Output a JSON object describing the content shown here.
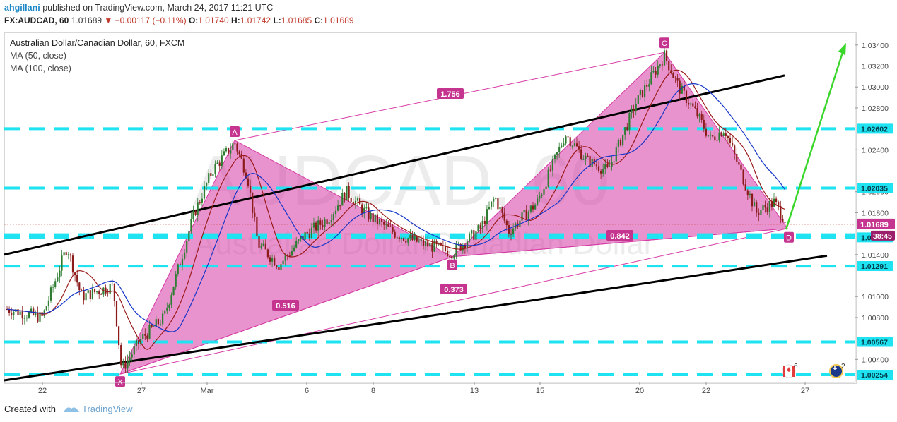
{
  "header": {
    "author": "ahgillani",
    "published_text": "published on TradingView.com, March 24, 2017 11:21 UTC"
  },
  "ohlc": {
    "symbol": "FX:AUDCAD, 60",
    "last": "1.01689",
    "change": "▼ −0.00117 (−0.11%)",
    "open": "1.01740",
    "high": "1.01742",
    "low": "1.01685",
    "close": "1.01689"
  },
  "legend": {
    "title": "Australian Dollar/Canadian Dollar, 60, FXCM",
    "ma50": "MA (50, close)",
    "ma100": "MA (100, close)"
  },
  "watermark": {
    "line1": "AUDCAD, 60",
    "line2": "Australian Dollar/Canadian Dollar"
  },
  "footer": {
    "created_with": "Created with",
    "brand": "TradingView"
  },
  "colors": {
    "pattern_fill": "#d63aa4",
    "pattern_label": "#c5358f",
    "hline": "#1fe3f0",
    "trendline": "#000000",
    "arrow": "#3bd62b",
    "ma50": "#9b1b1b",
    "ma100": "#1636c8",
    "candle_up": "#2e7d32",
    "candle_down": "#8b1a1a",
    "price_tag": "#c5358f",
    "timer_tag": "#9b1f6a"
  },
  "chart_data": {
    "type": "candlestick",
    "title": "Australian Dollar/Canadian Dollar, 60, FXCM",
    "price_axis": {
      "ylim": [
        1.0018,
        1.0352
      ],
      "ticks": [
        "1.00400",
        "1.00800",
        "1.01000",
        "1.01400",
        "1.01800",
        "1.02000",
        "1.02400",
        "1.02800",
        "1.03000",
        "1.03200",
        "1.03400"
      ]
    },
    "time_axis": {
      "labels": [
        "22",
        "27",
        "Mar",
        "6",
        "8",
        "13",
        "15",
        "20",
        "22",
        "27"
      ]
    },
    "horizontal_levels": [
      {
        "value": 1.02602,
        "label": "1.02602"
      },
      {
        "value": 1.02035,
        "label": "1.02035"
      },
      {
        "value": 1.01565,
        "label": "1.01565"
      },
      {
        "value": 1.01291,
        "label": "1.01291"
      },
      {
        "value": 1.00567,
        "label": "1.00567"
      },
      {
        "value": 1.00254,
        "label": "1.00254"
      }
    ],
    "unlabeled_levels": [
      1.0159,
      1.0129
    ],
    "current_price": {
      "value": 1.01689,
      "label": "1.01689",
      "timer": "38:45"
    },
    "harmonic_pattern": {
      "points": [
        {
          "name": "X",
          "price": 1.0026
        },
        {
          "name": "A",
          "price": 1.0249
        },
        {
          "name": "B",
          "price": 1.0138
        },
        {
          "name": "C",
          "price": 1.0333
        },
        {
          "name": "D",
          "price": 1.0165
        }
      ],
      "ratios": [
        {
          "label": "1.756",
          "between": "A-C"
        },
        {
          "label": "0.842",
          "between": "B-D"
        },
        {
          "label": "0.516",
          "between": "X-B"
        },
        {
          "label": "0.373",
          "between": "X-D"
        }
      ]
    },
    "trendlines": [
      {
        "name": "upper-channel",
        "from": 1.014,
        "to": 1.0311
      },
      {
        "name": "lower-channel",
        "from": 1.002,
        "to": 1.0139
      }
    ],
    "indicators": [
      {
        "name": "MA (50, close)"
      },
      {
        "name": "MA (100, close)"
      }
    ],
    "events": [
      {
        "icon": "canada-flag-icon",
        "count": "6"
      },
      {
        "icon": "australia-flag-icon",
        "count": "2"
      }
    ]
  }
}
